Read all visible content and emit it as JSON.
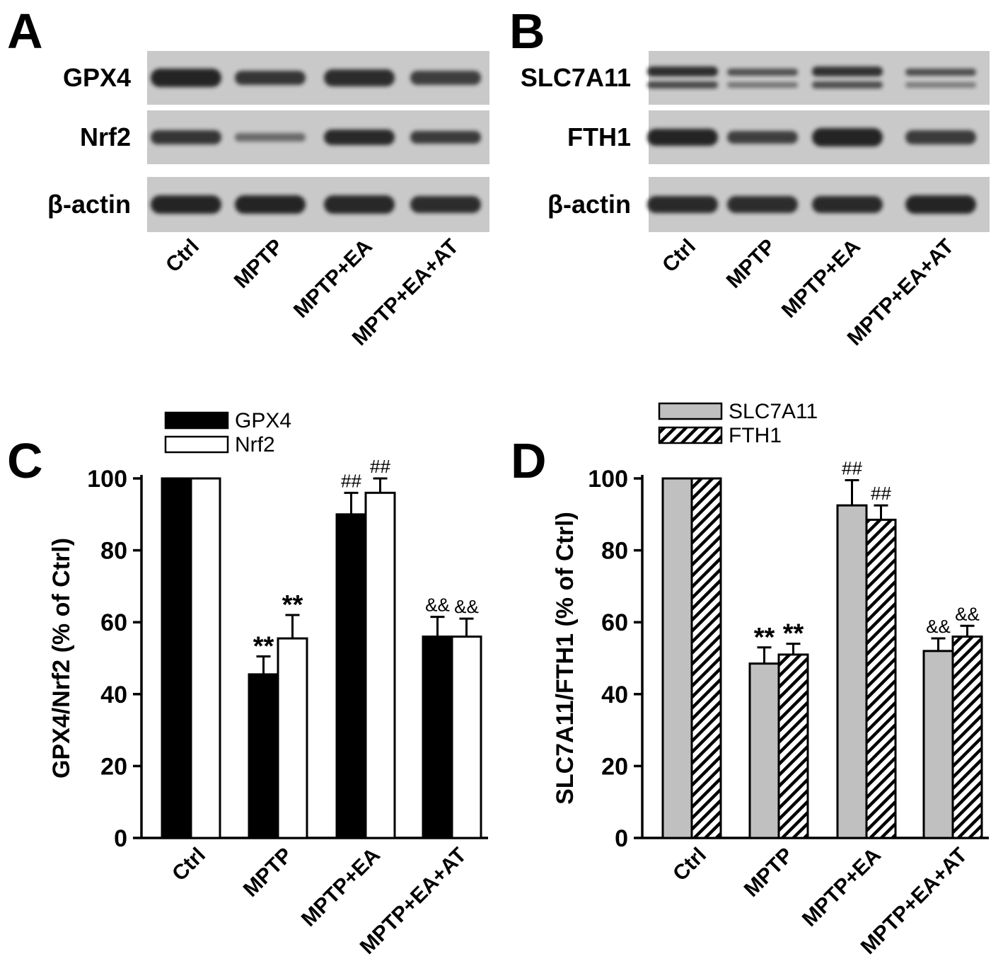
{
  "panels": {
    "A": {
      "letter": "A",
      "rows": [
        "GPX4",
        "Nrf2",
        "β-actin"
      ],
      "lanes": [
        "Ctrl",
        "MPTP",
        "MPTP+EA",
        "MPTP+EA+AT"
      ]
    },
    "B": {
      "letter": "B",
      "rows": [
        "SLC7A11",
        "FTH1",
        "β-actin"
      ],
      "lanes": [
        "Ctrl",
        "MPTP",
        "MPTP+EA",
        "MPTP+EA+AT"
      ]
    }
  },
  "colors": {
    "black": "#000000",
    "white": "#ffffff",
    "gray": "#c0c0c0",
    "blot_bg": "#c9c9c9",
    "band": "#1a1a1a"
  },
  "chart_data": [
    {
      "panel": "C",
      "type": "bar",
      "ylabel": "GPX4/Nrf2 (% of Ctrl)",
      "ylim": [
        0,
        100
      ],
      "yticks": [
        0,
        20,
        40,
        60,
        80,
        100
      ],
      "categories": [
        "Ctrl",
        "MPTP",
        "MPTP+EA",
        "MPTP+EA+AT"
      ],
      "legend_position": "top-left",
      "series": [
        {
          "name": "GPX4",
          "fill": "black",
          "values": [
            100,
            45.5,
            90,
            56
          ],
          "errors": [
            0,
            5,
            6,
            5.5
          ],
          "annotations": [
            "",
            "**",
            "##",
            "&&"
          ]
        },
        {
          "name": "Nrf2",
          "fill": "white",
          "values": [
            100,
            55.5,
            96,
            56
          ],
          "errors": [
            0,
            6.5,
            4,
            5
          ],
          "annotations": [
            "",
            "**",
            "##",
            "&&"
          ]
        }
      ]
    },
    {
      "panel": "D",
      "type": "bar",
      "ylabel": "SLC7A11/FTH1 (% of Ctrl)",
      "ylim": [
        0,
        100
      ],
      "yticks": [
        0,
        20,
        40,
        60,
        80,
        100
      ],
      "categories": [
        "Ctrl",
        "MPTP",
        "MPTP+EA",
        "MPTP+EA+AT"
      ],
      "legend_position": "top-left",
      "series": [
        {
          "name": "SLC7A11",
          "fill": "gray",
          "values": [
            100,
            48.5,
            92.5,
            52
          ],
          "errors": [
            0,
            4.5,
            7,
            3.5
          ],
          "annotations": [
            "",
            "**",
            "##",
            "&&"
          ]
        },
        {
          "name": "FTH1",
          "fill": "hatch",
          "values": [
            100,
            51,
            88.5,
            56
          ],
          "errors": [
            0,
            3,
            4,
            3
          ],
          "annotations": [
            "",
            "**",
            "##",
            "&&"
          ]
        }
      ]
    }
  ]
}
